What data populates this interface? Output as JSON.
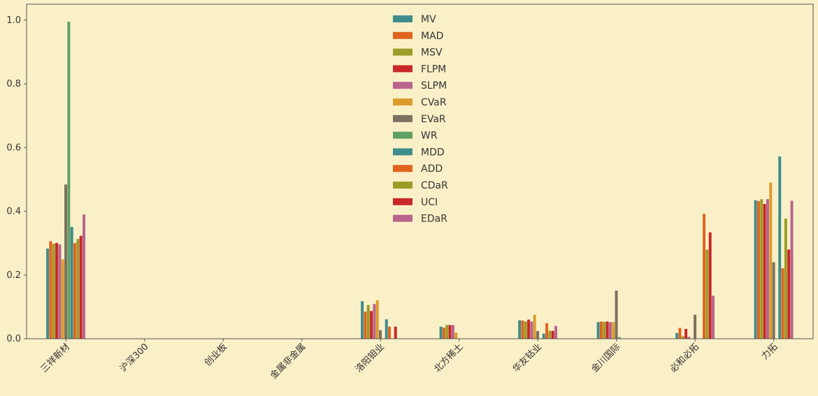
{
  "chart_data": {
    "type": "bar",
    "categories": [
      "三祥新材",
      "沪深300",
      "创业板",
      "金属非金属",
      "洛阳钼业",
      "北方稀土",
      "华友钴业",
      "金川国际",
      "必和必拓",
      "力拓"
    ],
    "series": [
      {
        "name": "MV",
        "color": "#3f8c8c",
        "values": [
          0.283,
          0,
          0,
          0,
          0.118,
          0.038,
          0.058,
          0.052,
          0.018,
          0.435
        ]
      },
      {
        "name": "MAD",
        "color": "#e0641c",
        "values": [
          0.306,
          0,
          0,
          0,
          0.085,
          0.035,
          0.057,
          0.054,
          0.034,
          0.432
        ]
      },
      {
        "name": "MSV",
        "color": "#9c9c28",
        "values": [
          0.298,
          0,
          0,
          0,
          0.106,
          0.043,
          0.054,
          0.053,
          0.008,
          0.438
        ]
      },
      {
        "name": "FLPM",
        "color": "#c82828",
        "values": [
          0.301,
          0,
          0,
          0,
          0.087,
          0.043,
          0.06,
          0.054,
          0.031,
          0.423
        ]
      },
      {
        "name": "SLPM",
        "color": "#b8648c",
        "values": [
          0.296,
          0,
          0,
          0,
          0.109,
          0.043,
          0.054,
          0.052,
          0.006,
          0.438
        ]
      },
      {
        "name": "CVaR",
        "color": "#dc9c2c",
        "values": [
          0.249,
          0,
          0,
          0,
          0.121,
          0.019,
          0.075,
          0.052,
          0,
          0.49
        ]
      },
      {
        "name": "EVaR",
        "color": "#7c7060",
        "values": [
          0.484,
          0,
          0,
          0,
          0.027,
          0,
          0.024,
          0.151,
          0.075,
          0.24
        ]
      },
      {
        "name": "WR",
        "color": "#60a064",
        "values": [
          0.995,
          0,
          0,
          0,
          0,
          0,
          0,
          0.005,
          0,
          0
        ]
      },
      {
        "name": "MDD",
        "color": "#3f8c8c",
        "values": [
          0.351,
          0,
          0,
          0,
          0.061,
          0,
          0.016,
          0,
          0,
          0.572
        ]
      },
      {
        "name": "ADD",
        "color": "#e0641c",
        "values": [
          0.3,
          0,
          0,
          0,
          0.038,
          0,
          0.049,
          0,
          0.392,
          0.221
        ]
      },
      {
        "name": "CDaR",
        "color": "#9c9c28",
        "values": [
          0.313,
          0,
          0,
          0,
          0,
          0,
          0.025,
          0,
          0.28,
          0.377
        ]
      },
      {
        "name": "UCI",
        "color": "#c82828",
        "values": [
          0.323,
          0,
          0,
          0,
          0.038,
          0,
          0.025,
          0,
          0.334,
          0.28
        ]
      },
      {
        "name": "EDaR",
        "color": "#b8648c",
        "values": [
          0.39,
          0,
          0,
          0,
          0,
          0,
          0.04,
          0,
          0.135,
          0.433
        ]
      }
    ],
    "yticks": [
      "0.0",
      "0.2",
      "0.4",
      "0.6",
      "0.8",
      "1.0"
    ],
    "ylim": [
      0,
      1.05
    ],
    "legend": "top-center",
    "grid": false,
    "background": "#faf0c8",
    "axis_color": "#555555"
  }
}
